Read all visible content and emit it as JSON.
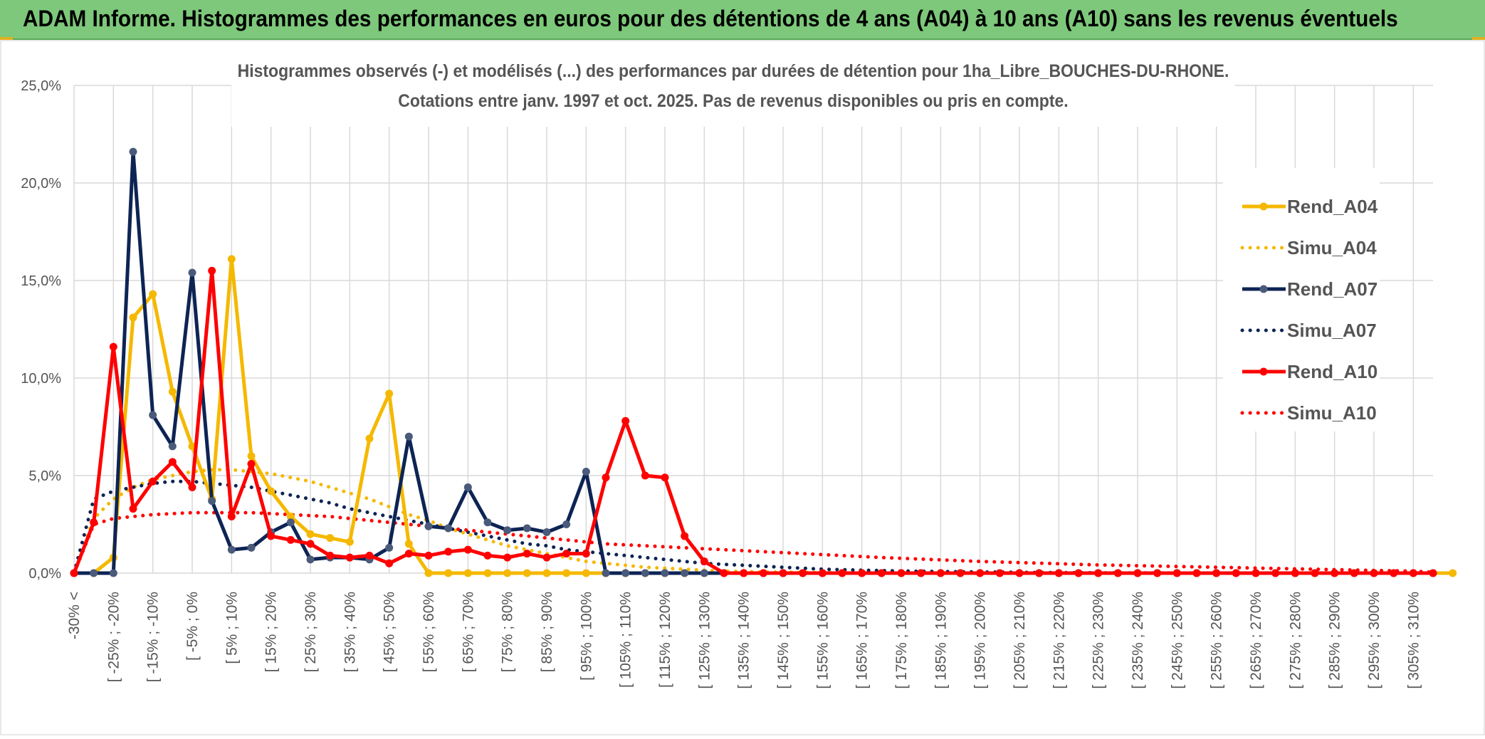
{
  "header": {
    "title": "ADAM Informe. Histogrammes des performances en euros pour des détentions de 4 ans (A04) à 10 ans (A10) sans les revenus éventuels"
  },
  "colors": {
    "banner": "#7dc87a",
    "rend_a04": "#f5b800",
    "rend_a07": "#0d2454",
    "rend_a10": "#ff0000",
    "grid": "#d9d9d9"
  },
  "chart_data": {
    "type": "line",
    "title_line1": "Histogrammes observés (-) et modélisés (...) des performances par durées de détention pour 1ha_Libre_BOUCHES-DU-RHONE.",
    "title_line2": "Cotations entre janv. 1997 et oct. 2025. Pas de revenus disponibles ou pris en compte.",
    "xlabel": "",
    "ylabel": "",
    "ylim": [
      0,
      25
    ],
    "y_ticks": [
      "0,0%",
      "5,0%",
      "10,0%",
      "15,0%",
      "20,0%",
      "25,0%"
    ],
    "x_tick_labels": [
      "-30% <",
      "[ -25% ; -20%",
      "[ -15% ; -10%",
      "[ -5% ; 0%",
      "[ 5% ; 10%",
      "[ 15% ; 20%",
      "[ 25% ; 30%",
      "[ 35% ; 40%",
      "[ 45% ; 50%",
      "[ 55% ; 60%",
      "[ 65% ; 70%",
      "[ 75% ; 80%",
      "[ 85% ; 90%",
      "[ 95% ; 100%",
      "[ 105% ; 110%",
      "[ 115% ; 120%",
      "[ 125% ; 130%",
      "[ 135% ; 140%",
      "[ 145% ; 150%",
      "[ 155% ; 160%",
      "[ 165% ; 170%",
      "[ 175% ; 180%",
      "[ 185% ; 190%",
      "[ 195% ; 200%",
      "[ 205% ; 210%",
      "[ 215% ; 220%",
      "[ 225% ; 230%",
      "[ 235% ; 240%",
      "[ 245% ; 250%",
      "[ 255% ; 260%",
      "[ 265% ; 270%",
      "[ 275% ; 280%",
      "[ 285% ; 290%",
      "[ 295% ; 300%",
      "[ 305% ; 310%"
    ],
    "n_categories": 70,
    "legend_position": "right",
    "series": [
      {
        "name": "Rend_A04",
        "style": "solid",
        "color": "#f5b800",
        "values": [
          0,
          0,
          0.8,
          13.1,
          14.3,
          9.3,
          6.5,
          3.8,
          16.1,
          6.0,
          4.2,
          2.9,
          2.0,
          1.8,
          1.6,
          6.9,
          9.2,
          1.5,
          0,
          0,
          0,
          0,
          0,
          0,
          0,
          0,
          0,
          0,
          0,
          0,
          0,
          0,
          0,
          0,
          0,
          0,
          0,
          0,
          0,
          0,
          0,
          0,
          0,
          0,
          0,
          0,
          0,
          0,
          0,
          0,
          0,
          0,
          0,
          0,
          0,
          0,
          0,
          0,
          0,
          0,
          0,
          0,
          0,
          0,
          0,
          0,
          0,
          0,
          0,
          0,
          0
        ]
      },
      {
        "name": "Simu_A04",
        "style": "dotted",
        "color": "#f5b800",
        "values": [
          0,
          2.8,
          3.8,
          4.4,
          4.8,
          5.0,
          5.2,
          5.3,
          5.3,
          5.2,
          5.1,
          4.9,
          4.7,
          4.4,
          4.1,
          3.8,
          3.4,
          3.0,
          2.7,
          2.3,
          2.0,
          1.7,
          1.4,
          1.2,
          1.0,
          0.8,
          0.6,
          0.5,
          0.4,
          0.3,
          0.25,
          0.2,
          0.15,
          0.1,
          0.08,
          0.06,
          0.05,
          0.04,
          0.03,
          0.02,
          0.01,
          0.01,
          0,
          0,
          0,
          0,
          0,
          0,
          0,
          0,
          0,
          0,
          0,
          0,
          0,
          0,
          0,
          0,
          0,
          0,
          0,
          0,
          0,
          0,
          0,
          0,
          0,
          0,
          0,
          0
        ]
      },
      {
        "name": "Rend_A07",
        "style": "solid",
        "color": "#0d2454",
        "values": [
          0,
          0,
          0,
          21.6,
          8.1,
          6.5,
          15.4,
          3.7,
          1.2,
          1.3,
          2.1,
          2.6,
          0.7,
          0.8,
          0.8,
          0.7,
          1.3,
          7.0,
          2.4,
          2.3,
          4.4,
          2.6,
          2.2,
          2.3,
          2.1,
          2.5,
          5.2,
          0,
          0,
          0,
          0,
          0,
          0,
          0,
          0,
          0,
          0,
          0,
          0,
          0,
          0,
          0,
          0,
          0,
          0,
          0,
          0,
          0,
          0,
          0,
          0,
          0,
          0,
          0,
          0,
          0,
          0,
          0,
          0,
          0,
          0,
          0,
          0,
          0,
          0,
          0,
          0,
          0,
          0,
          0
        ]
      },
      {
        "name": "Simu_A07",
        "style": "dotted",
        "color": "#0d2454",
        "values": [
          0,
          3.8,
          4.2,
          4.4,
          4.6,
          4.7,
          4.7,
          4.6,
          4.5,
          4.4,
          4.2,
          4.0,
          3.8,
          3.6,
          3.3,
          3.1,
          2.9,
          2.7,
          2.5,
          2.3,
          2.1,
          1.9,
          1.7,
          1.5,
          1.4,
          1.2,
          1.1,
          1.0,
          0.9,
          0.8,
          0.7,
          0.6,
          0.5,
          0.45,
          0.4,
          0.35,
          0.3,
          0.25,
          0.2,
          0.18,
          0.15,
          0.13,
          0.11,
          0.09,
          0.08,
          0.07,
          0.06,
          0.05,
          0.04,
          0.03,
          0.03,
          0.02,
          0.02,
          0.01,
          0.01,
          0.01,
          0,
          0,
          0,
          0,
          0,
          0,
          0,
          0,
          0,
          0,
          0,
          0,
          0,
          0
        ]
      },
      {
        "name": "Rend_A10",
        "style": "solid",
        "color": "#ff0000",
        "values": [
          0,
          2.6,
          11.6,
          3.3,
          4.7,
          5.7,
          4.4,
          15.5,
          2.9,
          5.6,
          1.9,
          1.7,
          1.5,
          0.9,
          0.8,
          0.9,
          0.5,
          1.0,
          0.9,
          1.1,
          1.2,
          0.9,
          0.8,
          1.0,
          0.8,
          1.0,
          1.0,
          4.9,
          7.8,
          5.0,
          4.9,
          1.9,
          0.6,
          0,
          0,
          0,
          0,
          0,
          0,
          0,
          0,
          0,
          0,
          0,
          0,
          0,
          0,
          0,
          0,
          0,
          0,
          0,
          0,
          0,
          0,
          0,
          0,
          0,
          0,
          0,
          0,
          0,
          0,
          0,
          0,
          0,
          0,
          0,
          0,
          0
        ]
      },
      {
        "name": "Simu_A10",
        "style": "dotted",
        "color": "#ff0000",
        "values": [
          0,
          2.5,
          2.8,
          2.9,
          3.0,
          3.05,
          3.1,
          3.1,
          3.1,
          3.1,
          3.05,
          3.0,
          2.95,
          2.9,
          2.8,
          2.7,
          2.6,
          2.5,
          2.4,
          2.3,
          2.2,
          2.1,
          2.0,
          1.9,
          1.8,
          1.7,
          1.6,
          1.5,
          1.45,
          1.4,
          1.35,
          1.3,
          1.25,
          1.2,
          1.15,
          1.1,
          1.05,
          1.0,
          0.95,
          0.9,
          0.85,
          0.8,
          0.76,
          0.72,
          0.68,
          0.64,
          0.6,
          0.57,
          0.54,
          0.51,
          0.48,
          0.45,
          0.42,
          0.4,
          0.38,
          0.36,
          0.34,
          0.32,
          0.3,
          0.28,
          0.26,
          0.24,
          0.22,
          0.2,
          0.18,
          0.16,
          0.14,
          0.12,
          0.1,
          0.05
        ]
      }
    ]
  }
}
